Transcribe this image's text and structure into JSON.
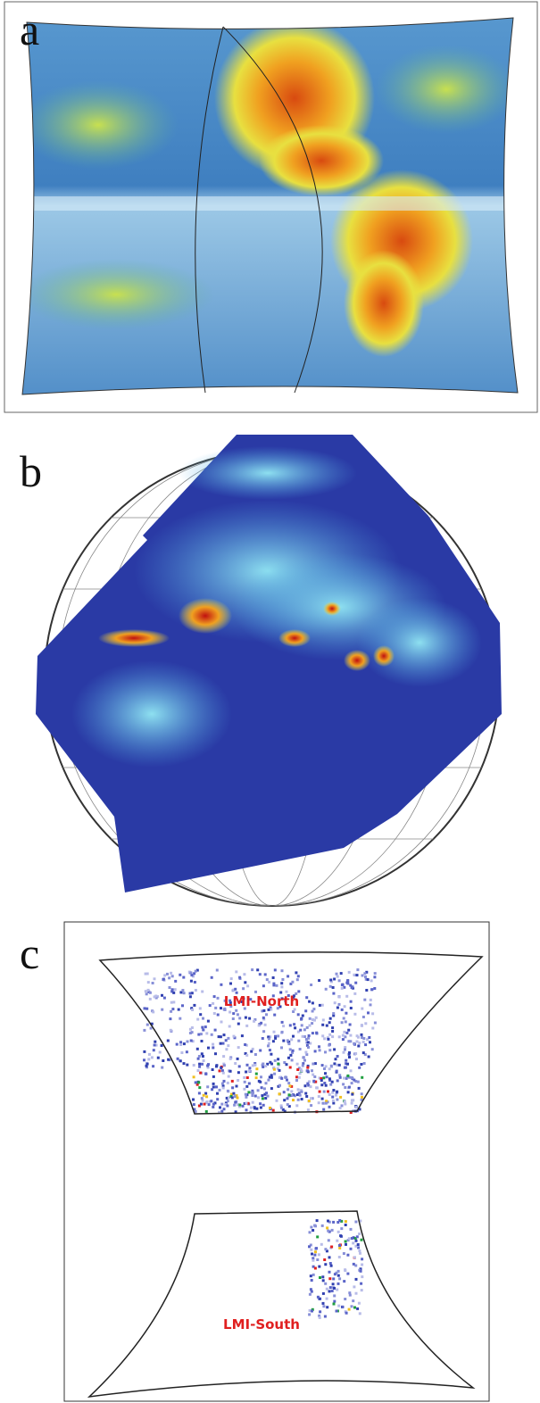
{
  "panels": [
    {
      "label": "a"
    },
    {
      "label": "b"
    },
    {
      "label": "c",
      "regions": [
        "LMI-North",
        "LMI-South"
      ]
    }
  ]
}
